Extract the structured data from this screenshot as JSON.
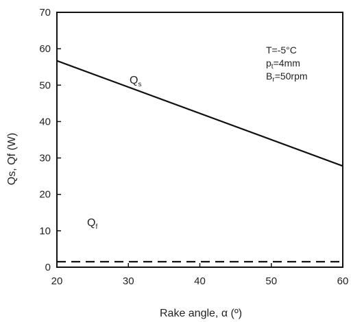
{
  "chart_data": {
    "type": "line",
    "xlabel": "Rake angle, α (º)",
    "ylabel": "Qs, Qf (W)",
    "xlim": [
      20,
      60
    ],
    "ylim": [
      0,
      70
    ],
    "xticks": [
      20,
      30,
      40,
      50,
      60
    ],
    "yticks": [
      0,
      10,
      20,
      30,
      40,
      50,
      60,
      70
    ],
    "grid": false,
    "legend": "none",
    "series": [
      {
        "name": "Qs",
        "label_main": "Q",
        "label_sub": "s",
        "style": "solid",
        "color": "#111111",
        "x": [
          20,
          60
        ],
        "y": [
          56.7,
          27.8
        ]
      },
      {
        "name": "Qf",
        "label_main": "Q",
        "label_sub": "f",
        "style": "dashed",
        "color": "#111111",
        "x": [
          20,
          60
        ],
        "y": [
          1.5,
          1.5
        ]
      }
    ],
    "annotations": [
      {
        "main": "T=-5°C",
        "sub": "",
        "tail": ""
      },
      {
        "main": "p",
        "sub": "t",
        "tail": "=4mm"
      },
      {
        "main": "B",
        "sub": "r",
        "tail": "=50rpm"
      }
    ]
  }
}
